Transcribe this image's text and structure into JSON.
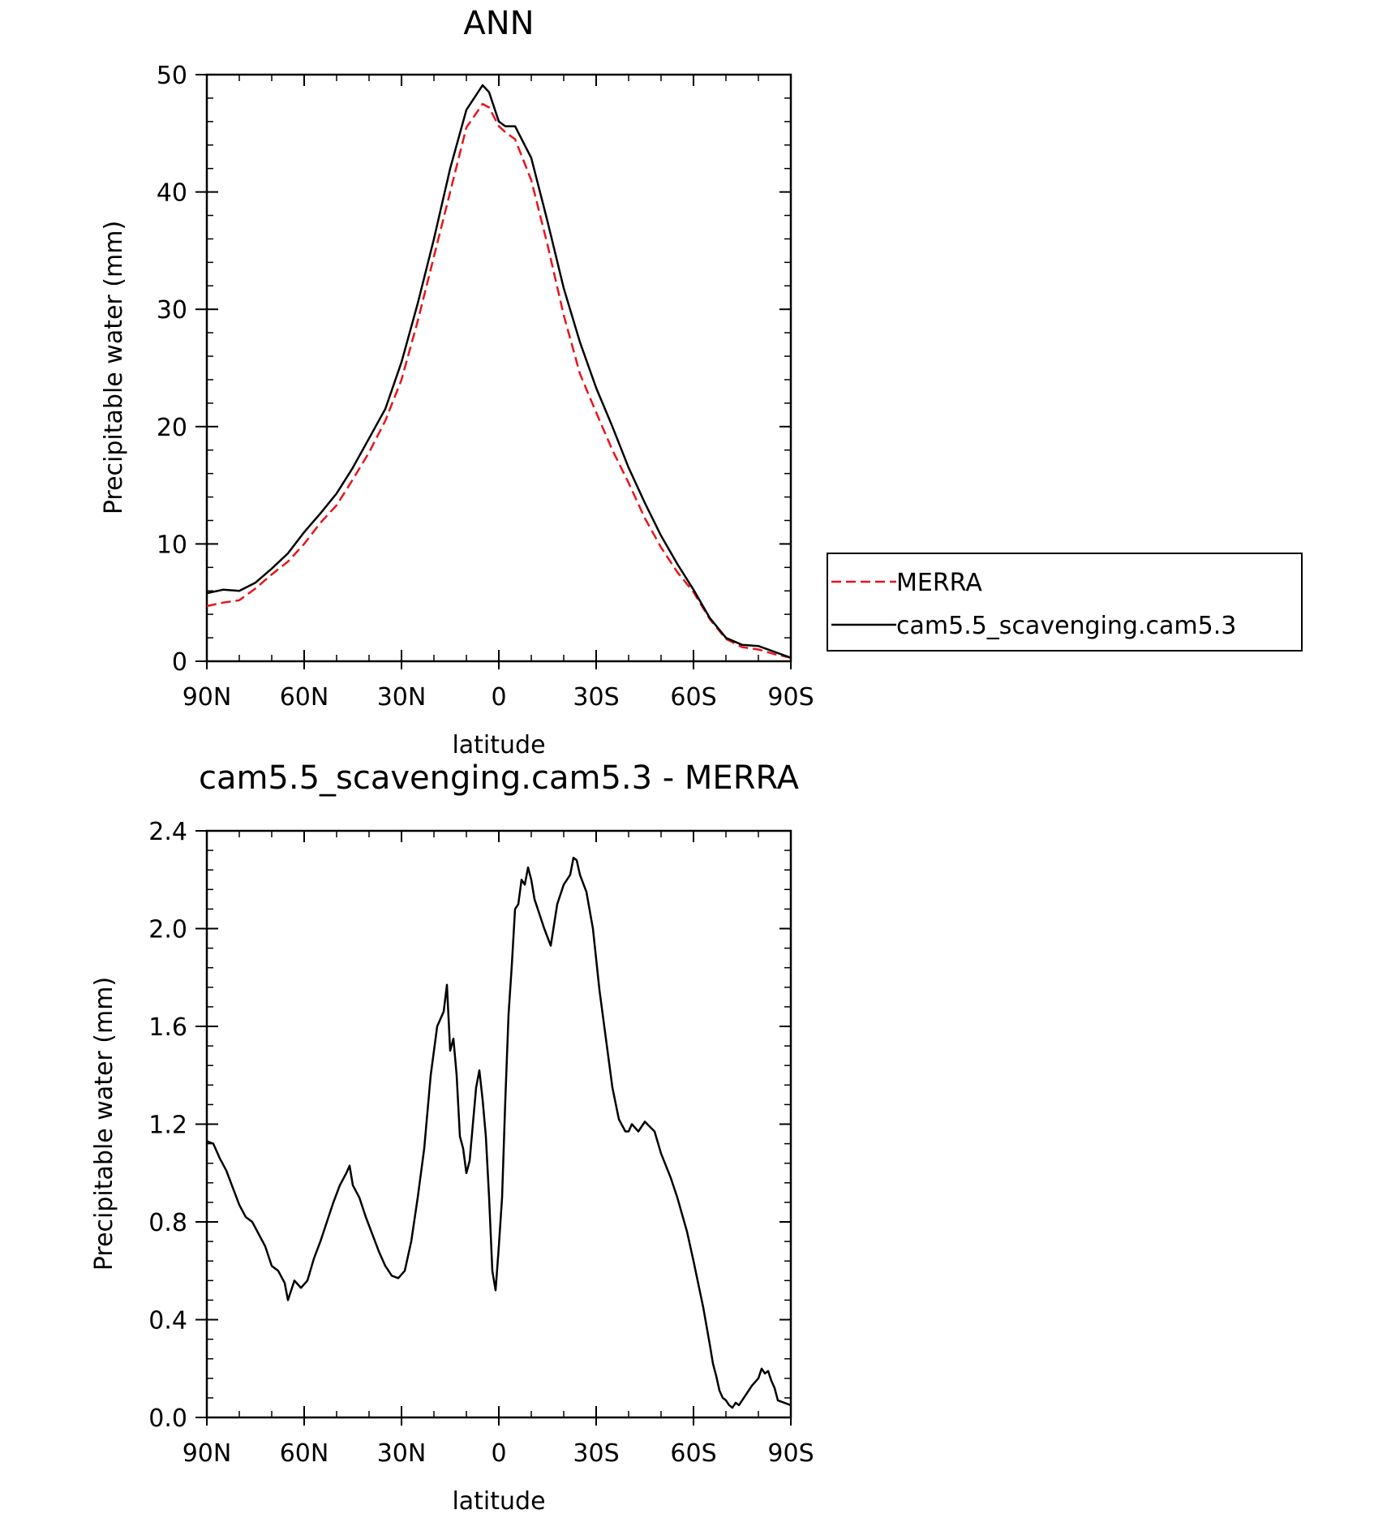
{
  "chart_data": [
    {
      "type": "line",
      "title": "ANN",
      "xlabel": "latitude",
      "ylabel": "Precipitable water (mm)",
      "xlim": [
        90,
        -90
      ],
      "ylim": [
        0,
        50
      ],
      "xticks": [
        {
          "value": 90,
          "label": "90N"
        },
        {
          "value": 60,
          "label": "60N"
        },
        {
          "value": 30,
          "label": "30N"
        },
        {
          "value": 0,
          "label": "0"
        },
        {
          "value": -30,
          "label": "30S"
        },
        {
          "value": -60,
          "label": "60S"
        },
        {
          "value": -90,
          "label": "90S"
        }
      ],
      "yticks": [
        {
          "value": 0,
          "label": "0"
        },
        {
          "value": 10,
          "label": "10"
        },
        {
          "value": 20,
          "label": "20"
        },
        {
          "value": 30,
          "label": "30"
        },
        {
          "value": 40,
          "label": "40"
        },
        {
          "value": 50,
          "label": "50"
        }
      ],
      "legend_position": "right",
      "series": [
        {
          "name": "MERRA",
          "color": "#e8141a",
          "dash": "dashed",
          "x": [
            90,
            85,
            80,
            75,
            70,
            65,
            60,
            55,
            50,
            45,
            40,
            35,
            30,
            25,
            20,
            15,
            10,
            5,
            3,
            0,
            -2,
            -5,
            -10,
            -15,
            -20,
            -25,
            -30,
            -35,
            -40,
            -45,
            -50,
            -55,
            -60,
            -65,
            -70,
            -75,
            -80,
            -85,
            -90
          ],
          "y": [
            4.7,
            5.0,
            5.2,
            6.2,
            7.4,
            8.5,
            10.0,
            11.8,
            13.3,
            15.5,
            17.8,
            20.5,
            24.0,
            29.0,
            34.5,
            40.0,
            45.5,
            47.5,
            47.2,
            45.6,
            45.1,
            44.5,
            41.0,
            35.5,
            29.5,
            24.5,
            21.2,
            18.0,
            15.2,
            12.2,
            9.7,
            7.6,
            5.9,
            3.6,
            1.9,
            1.2,
            1.0,
            0.6,
            0.3
          ]
        },
        {
          "name": "cam5.5_scavenging.cam5.3",
          "color": "#000000",
          "dash": "solid",
          "x": [
            90,
            85,
            80,
            75,
            70,
            65,
            60,
            55,
            50,
            45,
            40,
            35,
            30,
            25,
            20,
            15,
            10,
            5,
            3,
            0,
            -2,
            -5,
            -10,
            -15,
            -20,
            -25,
            -30,
            -35,
            -40,
            -45,
            -50,
            -55,
            -60,
            -65,
            -70,
            -75,
            -80,
            -85,
            -90
          ],
          "y": [
            5.8,
            6.1,
            6.0,
            6.7,
            7.9,
            9.2,
            11.0,
            12.6,
            14.3,
            16.5,
            19.0,
            21.5,
            25.5,
            30.5,
            36.0,
            42.0,
            47.0,
            49.1,
            48.5,
            46.0,
            45.6,
            45.6,
            42.9,
            37.5,
            31.8,
            27.2,
            23.3,
            20.0,
            16.5,
            13.5,
            10.7,
            8.3,
            6.1,
            3.7,
            2.0,
            1.4,
            1.3,
            0.8,
            0.3
          ]
        }
      ]
    },
    {
      "type": "line",
      "title": "cam5.5_scavenging.cam5.3 - MERRA",
      "xlabel": "latitude",
      "ylabel": "Precipitable water (mm)",
      "xlim": [
        90,
        -90
      ],
      "ylim": [
        0,
        2.4
      ],
      "xticks": [
        {
          "value": 90,
          "label": "90N"
        },
        {
          "value": 60,
          "label": "60N"
        },
        {
          "value": 30,
          "label": "30N"
        },
        {
          "value": 0,
          "label": "0"
        },
        {
          "value": -30,
          "label": "30S"
        },
        {
          "value": -60,
          "label": "60S"
        },
        {
          "value": -90,
          "label": "90S"
        }
      ],
      "yticks": [
        {
          "value": 0.0,
          "label": "0.0"
        },
        {
          "value": 0.4,
          "label": "0.4"
        },
        {
          "value": 0.8,
          "label": "0.8"
        },
        {
          "value": 1.2,
          "label": "1.2"
        },
        {
          "value": 1.6,
          "label": "1.6"
        },
        {
          "value": 2.0,
          "label": "2.0"
        },
        {
          "value": 2.4,
          "label": "2.4"
        }
      ],
      "series": [
        {
          "color": "#000000",
          "dash": "solid",
          "x": [
            90,
            88,
            86,
            84,
            82,
            80,
            78,
            76,
            74,
            72,
            70,
            68,
            66,
            65,
            63,
            61,
            59,
            57,
            55,
            53,
            51,
            49,
            47,
            46,
            45,
            43,
            41,
            39,
            37,
            35,
            33,
            31,
            29,
            27,
            25,
            23,
            21,
            19,
            17,
            16,
            15,
            14,
            13,
            12,
            11,
            10,
            9,
            8,
            7,
            6,
            5,
            4,
            3,
            2,
            1,
            0,
            -1,
            -2,
            -3,
            -4,
            -5,
            -6,
            -7,
            -8,
            -9,
            -10,
            -11,
            -12,
            -14,
            -16,
            -18,
            -20,
            -22,
            -23,
            -24,
            -25,
            -27,
            -29,
            -31,
            -33,
            -35,
            -37,
            -39,
            -40,
            -41,
            -43,
            -45,
            -48,
            -50,
            -53,
            -55,
            -58,
            -60,
            -63,
            -65,
            -66,
            -67,
            -68,
            -69,
            -70,
            -71,
            -72,
            -73,
            -74,
            -76,
            -78,
            -80,
            -81,
            -82,
            -83,
            -84,
            -85,
            -86,
            -88,
            -90
          ],
          "y": [
            1.13,
            1.12,
            1.06,
            1.01,
            0.94,
            0.87,
            0.82,
            0.8,
            0.75,
            0.7,
            0.62,
            0.6,
            0.55,
            0.48,
            0.56,
            0.53,
            0.56,
            0.65,
            0.72,
            0.8,
            0.88,
            0.95,
            1.0,
            1.03,
            0.95,
            0.9,
            0.82,
            0.75,
            0.68,
            0.62,
            0.58,
            0.57,
            0.6,
            0.72,
            0.9,
            1.1,
            1.4,
            1.6,
            1.66,
            1.77,
            1.5,
            1.55,
            1.4,
            1.15,
            1.1,
            1.0,
            1.05,
            1.2,
            1.35,
            1.42,
            1.3,
            1.15,
            0.9,
            0.6,
            0.52,
            0.7,
            0.9,
            1.3,
            1.65,
            1.85,
            2.08,
            2.1,
            2.2,
            2.18,
            2.25,
            2.2,
            2.12,
            2.08,
            2.0,
            1.93,
            2.1,
            2.18,
            2.22,
            2.29,
            2.28,
            2.22,
            2.15,
            2.0,
            1.75,
            1.55,
            1.35,
            1.22,
            1.17,
            1.17,
            1.2,
            1.17,
            1.21,
            1.17,
            1.08,
            0.98,
            0.9,
            0.76,
            0.64,
            0.45,
            0.3,
            0.22,
            0.17,
            0.11,
            0.08,
            0.07,
            0.05,
            0.04,
            0.06,
            0.05,
            0.09,
            0.13,
            0.16,
            0.2,
            0.18,
            0.19,
            0.15,
            0.12,
            0.07,
            0.06,
            0.05
          ]
        }
      ]
    }
  ]
}
